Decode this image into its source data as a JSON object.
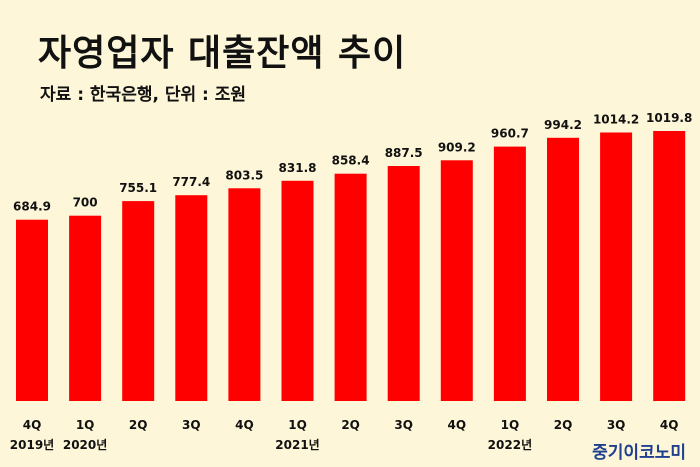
{
  "header": {
    "title": "자영업자 대출잔액 추이",
    "source": "자료 : 한국은행, 단위 : 조원"
  },
  "watermark": "중기이코노미",
  "colors": {
    "background": "#fdf6d8",
    "bar": "#ff0000",
    "text": "#111111",
    "watermark": "#1f3f8f"
  },
  "chart_data": {
    "type": "bar",
    "title": "자영업자 대출잔액 추이",
    "ylabel": "",
    "xlabel": "",
    "categories": [
      "4Q",
      "1Q",
      "2Q",
      "3Q",
      "4Q",
      "1Q",
      "2Q",
      "3Q",
      "4Q",
      "1Q",
      "2Q",
      "3Q",
      "4Q"
    ],
    "year_labels": [
      "2019년",
      "2020년",
      "",
      "",
      "",
      "2021년",
      "",
      "",
      "",
      "2022년",
      "",
      "",
      ""
    ],
    "values": [
      684.9,
      700,
      755.1,
      777.4,
      803.5,
      831.8,
      858.4,
      887.5,
      909.2,
      960.7,
      994.2,
      1014.2,
      1019.8
    ],
    "value_labels": [
      "684.9",
      "700",
      "755.1",
      "777.4",
      "803.5",
      "831.8",
      "858.4",
      "887.5",
      "909.2",
      "960.7",
      "994.2",
      "1014.2",
      "1019.8"
    ],
    "ylim": [
      0,
      1150
    ],
    "grid": false,
    "legend": "none"
  }
}
